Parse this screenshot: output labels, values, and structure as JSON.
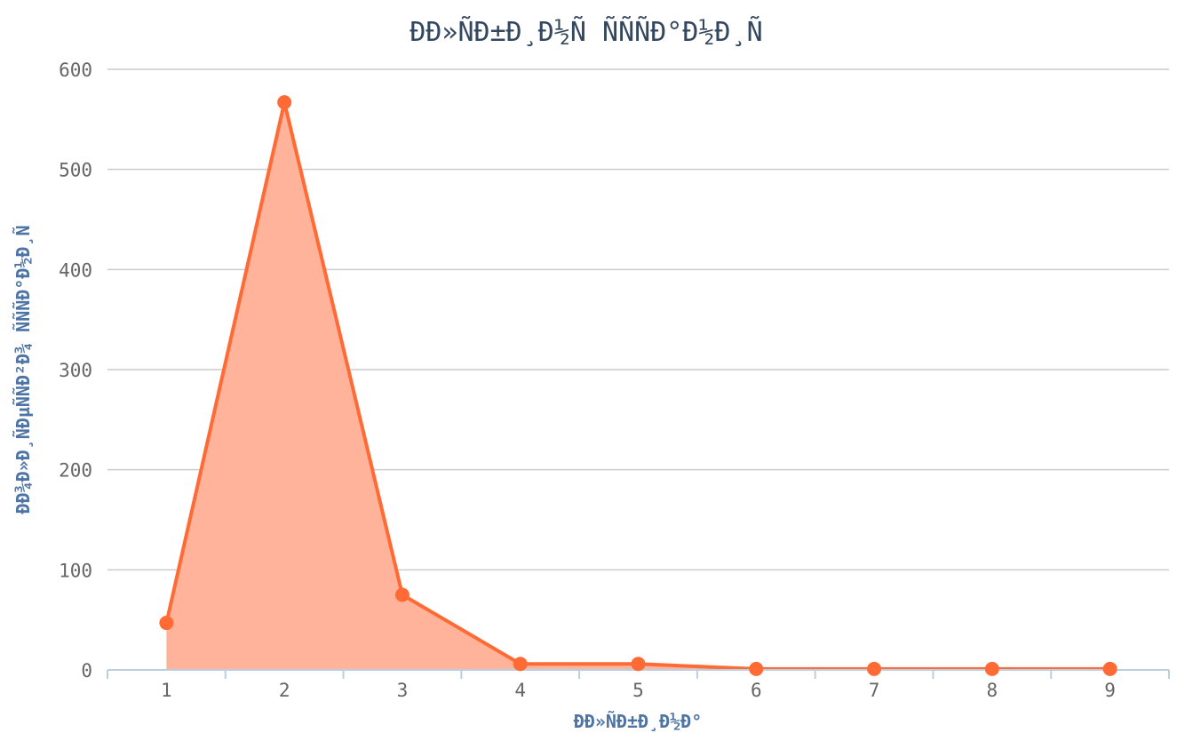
{
  "chart_data": {
    "type": "area",
    "title": "ÐÐ»ÑÐ±Ð¸Ð½Ñ ÑÑÑÐ°Ð½Ð¸Ñ",
    "xlabel": "ÐÐ»ÑÐ±Ð¸Ð½Ð°",
    "ylabel": "ÐÐ¾Ð»Ð¸ÑÐµÑÑÐ²Ð¾ ÑÑÑÐ°Ð½Ð¸Ñ",
    "categories": [
      "1",
      "2",
      "3",
      "4",
      "5",
      "6",
      "7",
      "8",
      "9"
    ],
    "values": [
      47,
      567,
      75,
      6,
      6,
      1,
      1,
      1,
      1
    ],
    "ylim": [
      0,
      600
    ],
    "yticks": [
      "0",
      "100",
      "200",
      "300",
      "400",
      "500",
      "600"
    ],
    "grid": true,
    "legend": "none",
    "colors": {
      "line": "#ff6a35",
      "fill": "#ffb39b",
      "marker": "#ff6a35",
      "grid": "#cccccc",
      "axis": "#bccfe0",
      "title": "#33475f",
      "axis_title": "#4d74a4",
      "tick_label": "#666666"
    }
  }
}
